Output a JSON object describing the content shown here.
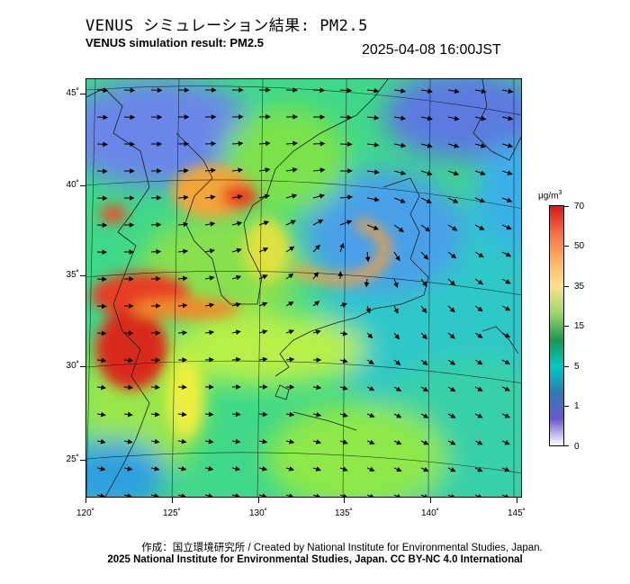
{
  "header": {
    "title_jp": "VENUS シミュレーション結果: PM2.5",
    "title_en": "VENUS simulation result: PM2.5",
    "timestamp": "2025-04-08 16:00JST"
  },
  "map": {
    "lat_labels": [
      "45˚",
      "40˚",
      "35˚",
      "30˚",
      "25˚"
    ],
    "lon_labels": [
      "120˚",
      "125˚",
      "130˚",
      "135˚",
      "140˚",
      "145˚"
    ],
    "lat_values": [
      45,
      40,
      35,
      30,
      25
    ],
    "lon_values": [
      120,
      125,
      130,
      135,
      140,
      145
    ]
  },
  "colorbar": {
    "unit": "μg/m",
    "unit_sup": "3",
    "labels": [
      "70",
      "50",
      "35",
      "15",
      "5",
      "1",
      "0"
    ],
    "colors": [
      "#d7191c",
      "#f46d43",
      "#fdae61",
      "#fee08b",
      "#a6d96a",
      "#1a9850",
      "#00c8c8",
      "#2c7bb6",
      "#6a5acd",
      "#ffffff"
    ]
  },
  "footer": {
    "credit1": "作成：国立環境研究所 / Created by National Institute for Environmental Studies, Japan.",
    "credit2": "2025 National Institute for Environmental Studies, Japan. CC BY-NC 4.0 International"
  }
}
